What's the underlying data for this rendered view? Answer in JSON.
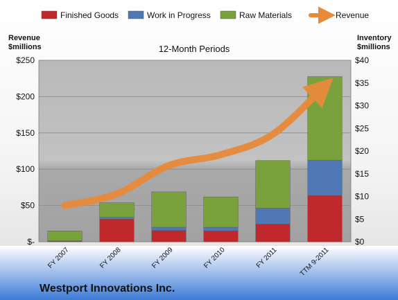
{
  "colors": {
    "finished": "#c0282c",
    "wip": "#4f78b4",
    "raw": "#79a23c",
    "revenue": "#e88a3a"
  },
  "chart_data": {
    "type": "bar",
    "stacked": true,
    "company": "Westport Innovations Inc.",
    "subtitle": "12-Month Periods",
    "left_axis_title": [
      "Revenue",
      "$millions"
    ],
    "right_axis_title": [
      "Inventory",
      "$millions"
    ],
    "left_ticks": [
      "$-",
      "$50",
      "$100",
      "$150",
      "$200",
      "$250"
    ],
    "right_ticks": [
      "$0",
      "$5",
      "$10",
      "$15",
      "$20",
      "$25",
      "$30",
      "$35",
      "$40"
    ],
    "ylim_revenue": [
      0,
      250
    ],
    "ylim_inventory": [
      0,
      40
    ],
    "categories": [
      "FY 2007",
      "FY 2008",
      "FY 2009",
      "FY 2010",
      "FY 2011",
      "TTM 9-2011"
    ],
    "series": [
      {
        "name": "Finished Goods",
        "axis": "inventory",
        "values": [
          0.1,
          5.0,
          2.5,
          2.4,
          3.9,
          10.2
        ]
      },
      {
        "name": "Work in Progress",
        "axis": "inventory",
        "values": [
          0.1,
          0.4,
          0.7,
          0.8,
          3.5,
          7.8
        ]
      },
      {
        "name": "Raw Materials",
        "axis": "inventory",
        "values": [
          2.2,
          3.2,
          7.8,
          6.7,
          10.5,
          18.4
        ]
      },
      {
        "name": "Revenue",
        "axis": "revenue",
        "type": "line",
        "values": [
          50,
          66,
          105,
          120,
          148,
          215
        ]
      }
    ],
    "legend_position": "top",
    "grid": true
  }
}
